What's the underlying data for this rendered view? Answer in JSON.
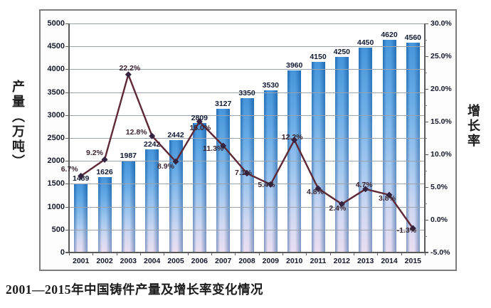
{
  "caption": "2001—2015年中国铸件产量及增长率变化情况",
  "colors": {
    "bar_top": "#2c86d6",
    "bar_bottom": "#e7d9ef",
    "line": "#5e2936",
    "marker": "#332340",
    "grid": "#9aa2ae",
    "text": "#15182b",
    "pct_text": "#3a2430"
  },
  "chart_data": {
    "type": "bar",
    "subtype": "bar+line combo",
    "categories": [
      "2001",
      "2002",
      "2003",
      "2004",
      "2005",
      "2006",
      "2007",
      "2008",
      "2009",
      "2010",
      "2011",
      "2012",
      "2013",
      "2014",
      "2015"
    ],
    "series": [
      {
        "name": "产量",
        "type": "bar",
        "axis": "left",
        "values": [
          1489,
          1626,
          1987,
          2242,
          2442,
          2809,
          3127,
          3350,
          3530,
          3960,
          4150,
          4250,
          4450,
          4620,
          4560
        ],
        "value_labels": [
          "1489",
          "1626",
          "1987",
          "2242",
          "2442",
          "2809",
          "3127",
          "3350",
          "3530",
          "3960",
          "4150",
          "4250",
          "4450",
          "4620",
          "4560"
        ]
      },
      {
        "name": "增长率",
        "type": "line",
        "axis": "right",
        "values": [
          6.7,
          9.2,
          22.2,
          12.8,
          8.9,
          15.0,
          11.3,
          7.1,
          5.4,
          12.2,
          4.8,
          2.4,
          4.7,
          3.8,
          -1.3
        ],
        "value_labels": [
          "6.7%",
          "9.2%",
          "22.2%",
          "12.8%",
          "8.9%",
          "15.0%",
          "11.3%",
          "7.1%",
          "5.4%",
          "12.2%",
          "4.8%",
          "2.4%",
          "4.7%",
          "3.8%",
          "-1.3%"
        ]
      }
    ],
    "left_axis": {
      "title": "产量（万吨）",
      "min": 0,
      "max": 5000,
      "ticks": [
        "5000",
        "4500",
        "4000",
        "3500",
        "3000",
        "2500",
        "2000",
        "1500",
        "1000",
        "500",
        "0"
      ]
    },
    "right_axis": {
      "title": "增长率",
      "min": -5,
      "max": 30,
      "ticks": [
        "30.0%",
        "25.0%",
        "20.0%",
        "15.0%",
        "10.0%",
        "5.0%",
        "0.0%",
        "-5.0%"
      ]
    },
    "grid": "horizontal gridlines on, drawn over bars",
    "legend": "none"
  }
}
